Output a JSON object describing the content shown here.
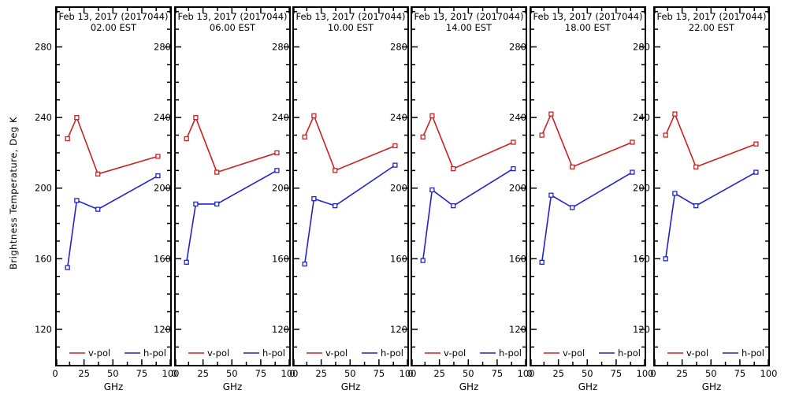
{
  "figure": {
    "ylabel": "Brightness Temperature, Deg K",
    "background": "#ffffff",
    "axis_color": "#000000",
    "legend": {
      "vpol_label": "v-pol",
      "hpol_label": "h-pol"
    },
    "colors": {
      "vpol": "#cc2222",
      "hpol": "#2222cc"
    }
  },
  "chart_data": [
    {
      "type": "line",
      "title": "Feb 13, 2017 (2017044)",
      "subtitle": "02.00 EST",
      "xlabel": "GHz",
      "x": [
        10.7,
        18.7,
        37,
        89
      ],
      "series": [
        {
          "name": "v-pol",
          "values": [
            228,
            240,
            208,
            218
          ]
        },
        {
          "name": "h-pol",
          "values": [
            155,
            193,
            188,
            207
          ]
        }
      ],
      "xlim": [
        0,
        101
      ],
      "ylim": [
        99,
        303
      ],
      "xticks": [
        0,
        25,
        50,
        75,
        100
      ],
      "yticks": [
        120,
        160,
        200,
        240,
        280
      ]
    },
    {
      "type": "line",
      "title": "Feb 13, 2017 (2017044)",
      "subtitle": "06.00 EST",
      "xlabel": "GHz",
      "x": [
        10.7,
        18.7,
        37,
        89
      ],
      "series": [
        {
          "name": "v-pol",
          "values": [
            228,
            240,
            209,
            220
          ]
        },
        {
          "name": "h-pol",
          "values": [
            158,
            191,
            191,
            210
          ]
        }
      ],
      "xlim": [
        0,
        101
      ],
      "ylim": [
        99,
        303
      ],
      "xticks": [
        0,
        25,
        50,
        75,
        100
      ],
      "yticks": [
        120,
        160,
        200,
        240,
        280
      ]
    },
    {
      "type": "line",
      "title": "Feb 13, 2017 (2017044)",
      "subtitle": "10.00 EST",
      "xlabel": "GHz",
      "x": [
        10.7,
        18.7,
        37,
        89
      ],
      "series": [
        {
          "name": "v-pol",
          "values": [
            229,
            241,
            210,
            224
          ]
        },
        {
          "name": "h-pol",
          "values": [
            157,
            194,
            190,
            213
          ]
        }
      ],
      "xlim": [
        0,
        101
      ],
      "ylim": [
        99,
        303
      ],
      "xticks": [
        0,
        25,
        50,
        75,
        100
      ],
      "yticks": [
        120,
        160,
        200,
        240,
        280
      ]
    },
    {
      "type": "line",
      "title": "Feb 13, 2017 (2017044)",
      "subtitle": "14.00 EST",
      "xlabel": "GHz",
      "x": [
        10.7,
        18.7,
        37,
        89
      ],
      "series": [
        {
          "name": "v-pol",
          "values": [
            229,
            241,
            211,
            226
          ]
        },
        {
          "name": "h-pol",
          "values": [
            159,
            199,
            190,
            211
          ]
        }
      ],
      "xlim": [
        0,
        101
      ],
      "ylim": [
        99,
        303
      ],
      "xticks": [
        0,
        25,
        50,
        75,
        100
      ],
      "yticks": [
        120,
        160,
        200,
        240,
        280
      ]
    },
    {
      "type": "line",
      "title": "Feb 13, 2017 (2017044)",
      "subtitle": "18.00 EST",
      "xlabel": "GHz",
      "x": [
        10.7,
        18.7,
        37,
        89
      ],
      "series": [
        {
          "name": "v-pol",
          "values": [
            230,
            242,
            212,
            226
          ]
        },
        {
          "name": "h-pol",
          "values": [
            158,
            196,
            189,
            209
          ]
        }
      ],
      "xlim": [
        0,
        101
      ],
      "ylim": [
        99,
        303
      ],
      "xticks": [
        0,
        25,
        50,
        75,
        100
      ],
      "yticks": [
        120,
        160,
        200,
        240,
        280
      ]
    },
    {
      "type": "line",
      "title": "Feb 13, 2017 (2017044)",
      "subtitle": "22.00 EST",
      "xlabel": "GHz",
      "x": [
        10.7,
        18.7,
        37,
        89
      ],
      "series": [
        {
          "name": "v-pol",
          "values": [
            230,
            242,
            212,
            225
          ]
        },
        {
          "name": "h-pol",
          "values": [
            160,
            197,
            190,
            209
          ]
        }
      ],
      "xlim": [
        0,
        101
      ],
      "ylim": [
        99,
        303
      ],
      "xticks": [
        0,
        25,
        50,
        75,
        100
      ],
      "yticks": [
        120,
        160,
        200,
        240,
        280
      ]
    }
  ]
}
